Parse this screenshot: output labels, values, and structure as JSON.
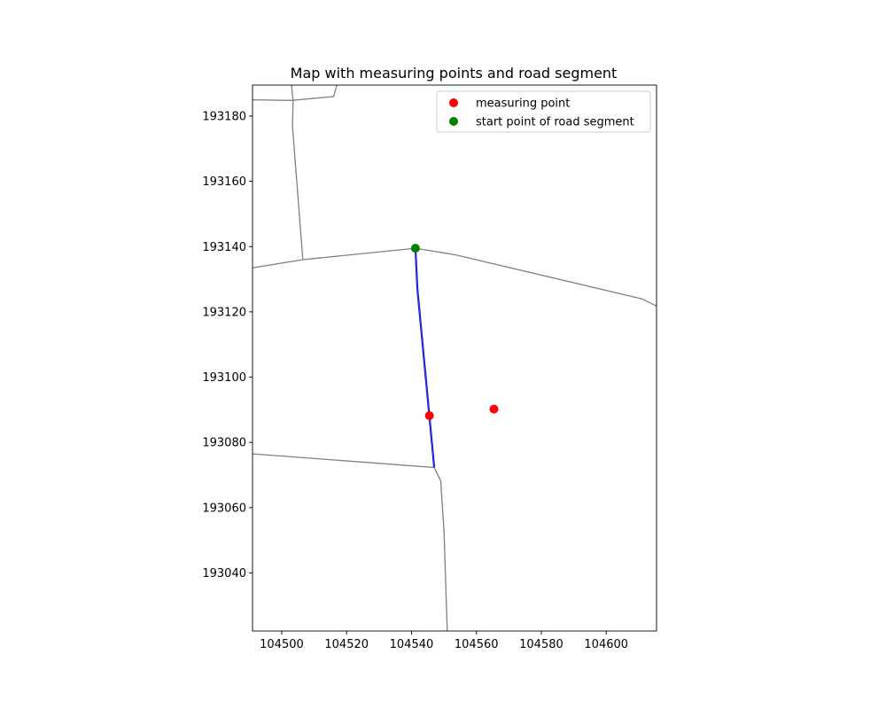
{
  "chart_data": {
    "type": "scatter",
    "title": "Map with measuring points and road segment",
    "xlabel": "",
    "ylabel": "",
    "xlim": [
      104491,
      104615.5
    ],
    "ylim": [
      193022.2,
      193189.5
    ],
    "xticks": [
      104500,
      104520,
      104540,
      104560,
      104580,
      104600
    ],
    "yticks": [
      193040,
      193060,
      193080,
      193100,
      193120,
      193140,
      193160,
      193180
    ],
    "x_tick_labels": [
      "104500",
      "104520",
      "104540",
      "104560",
      "104580",
      "104600"
    ],
    "y_tick_labels": [
      "193040",
      "193060",
      "193080",
      "193100",
      "193120",
      "193140",
      "193160",
      "193180"
    ],
    "grid": false,
    "legend_position": "top-right",
    "roads_color": "#808080",
    "roads": [
      [
        [
          104491,
          193185
        ],
        [
          104503,
          193184.8
        ],
        [
          104516,
          193186
        ],
        [
          104517,
          193189.5
        ]
      ],
      [
        [
          104503,
          193189.5
        ],
        [
          104503.5,
          193184.8
        ],
        [
          104503.3,
          193177
        ],
        [
          104506.5,
          193136
        ]
      ],
      [
        [
          104491,
          193133.5
        ],
        [
          104506.5,
          193136
        ],
        [
          104541.2,
          193139.5
        ],
        [
          104553.5,
          193137.5
        ],
        [
          104611,
          193124
        ],
        [
          104615.5,
          193121.8
        ]
      ],
      [
        [
          104491,
          193076.5
        ],
        [
          104547,
          193072.3
        ],
        [
          104549,
          193068.2
        ],
        [
          104550,
          193053
        ],
        [
          104551,
          193022.2
        ]
      ]
    ],
    "segment_color": "#1010cc",
    "road_segment": [
      [
        104541.2,
        193139.5
      ],
      [
        104541.8,
        193127
      ],
      [
        104547,
        193072.3
      ]
    ],
    "series": [
      {
        "name": "measuring point",
        "color": "#ff0000",
        "points": [
          [
            104545.5,
            193088.2
          ],
          [
            104565.4,
            193090.2
          ]
        ]
      },
      {
        "name": "start point of road segment",
        "color": "#008000",
        "points": [
          [
            104541.2,
            193139.5
          ]
        ]
      }
    ]
  }
}
